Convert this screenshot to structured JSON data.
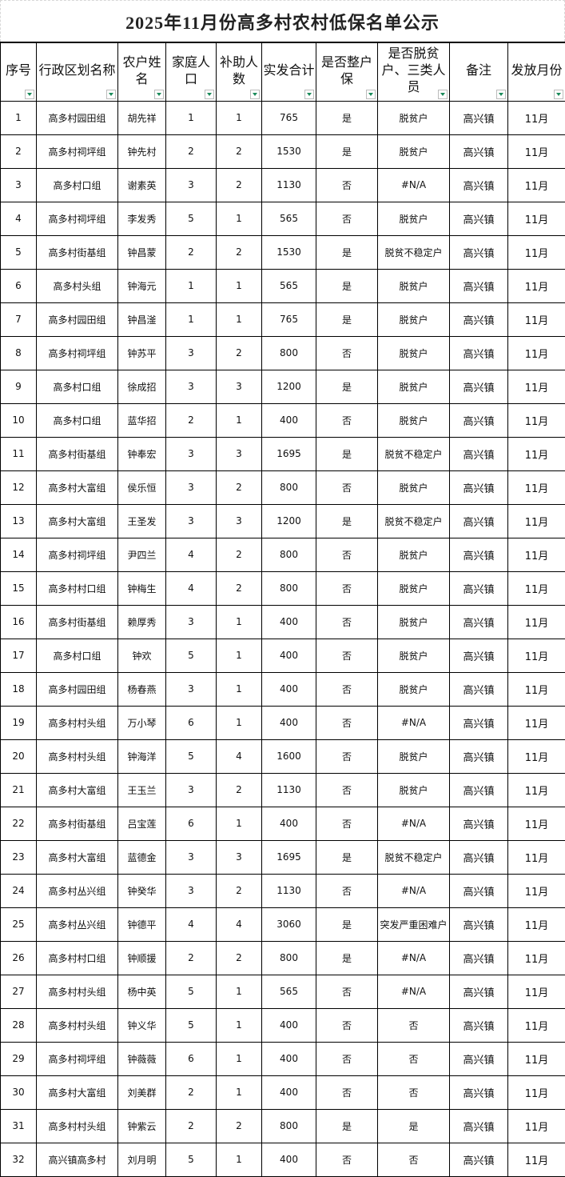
{
  "title": "2025年11月份高多村农村低保名单公示",
  "headers": [
    "序号",
    "行政区划名称",
    "农户姓名",
    "家庭人口",
    "补助人数",
    "实发合计",
    "是否整户保",
    "是否脱贫户、三类人员",
    "备注",
    "发放月份"
  ],
  "rows": [
    [
      "1",
      "高多村园田组",
      "胡先祥",
      "1",
      "1",
      "765",
      "是",
      "脱贫户",
      "高兴镇",
      "11月"
    ],
    [
      "2",
      "高多村祠坪组",
      "钟先村",
      "2",
      "2",
      "1530",
      "是",
      "脱贫户",
      "高兴镇",
      "11月"
    ],
    [
      "3",
      "高多村口组",
      "谢素英",
      "3",
      "2",
      "1130",
      "否",
      "#N/A",
      "高兴镇",
      "11月"
    ],
    [
      "4",
      "高多村祠坪组",
      "李发秀",
      "5",
      "1",
      "565",
      "否",
      "脱贫户",
      "高兴镇",
      "11月"
    ],
    [
      "5",
      "高多村街基组",
      "钟昌蒙",
      "2",
      "2",
      "1530",
      "是",
      "脱贫不稳定户",
      "高兴镇",
      "11月"
    ],
    [
      "6",
      "高多村头组",
      "钟海元",
      "1",
      "1",
      "565",
      "是",
      "脱贫户",
      "高兴镇",
      "11月"
    ],
    [
      "7",
      "高多村园田组",
      "钟昌滏",
      "1",
      "1",
      "765",
      "是",
      "脱贫户",
      "高兴镇",
      "11月"
    ],
    [
      "8",
      "高多村祠坪组",
      "钟苏平",
      "3",
      "2",
      "800",
      "否",
      "脱贫户",
      "高兴镇",
      "11月"
    ],
    [
      "9",
      "高多村口组",
      "徐成招",
      "3",
      "3",
      "1200",
      "是",
      "脱贫户",
      "高兴镇",
      "11月"
    ],
    [
      "10",
      "高多村口组",
      "蓝华招",
      "2",
      "1",
      "400",
      "否",
      "脱贫户",
      "高兴镇",
      "11月"
    ],
    [
      "11",
      "高多村街基组",
      "钟奉宏",
      "3",
      "3",
      "1695",
      "是",
      "脱贫不稳定户",
      "高兴镇",
      "11月"
    ],
    [
      "12",
      "高多村大富组",
      "侯乐恒",
      "3",
      "2",
      "800",
      "否",
      "脱贫户",
      "高兴镇",
      "11月"
    ],
    [
      "13",
      "高多村大富组",
      "王圣发",
      "3",
      "3",
      "1200",
      "是",
      "脱贫不稳定户",
      "高兴镇",
      "11月"
    ],
    [
      "14",
      "高多村祠坪组",
      "尹四兰",
      "4",
      "2",
      "800",
      "否",
      "脱贫户",
      "高兴镇",
      "11月"
    ],
    [
      "15",
      "高多村村口组",
      "钟梅生",
      "4",
      "2",
      "800",
      "否",
      "脱贫户",
      "高兴镇",
      "11月"
    ],
    [
      "16",
      "高多村街基组",
      "赖厚秀",
      "3",
      "1",
      "400",
      "否",
      "脱贫户",
      "高兴镇",
      "11月"
    ],
    [
      "17",
      "高多村口组",
      "钟欢",
      "5",
      "1",
      "400",
      "否",
      "脱贫户",
      "高兴镇",
      "11月"
    ],
    [
      "18",
      "高多村园田组",
      "杨春燕",
      "3",
      "1",
      "400",
      "否",
      "脱贫户",
      "高兴镇",
      "11月"
    ],
    [
      "19",
      "高多村村头组",
      "万小琴",
      "6",
      "1",
      "400",
      "否",
      "#N/A",
      "高兴镇",
      "11月"
    ],
    [
      "20",
      "高多村村头组",
      "钟海洋",
      "5",
      "4",
      "1600",
      "否",
      "脱贫户",
      "高兴镇",
      "11月"
    ],
    [
      "21",
      "高多村大富组",
      "王玉兰",
      "3",
      "2",
      "1130",
      "否",
      "脱贫户",
      "高兴镇",
      "11月"
    ],
    [
      "22",
      "高多村街基组",
      "吕宝莲",
      "6",
      "1",
      "400",
      "否",
      "#N/A",
      "高兴镇",
      "11月"
    ],
    [
      "23",
      "高多村大富组",
      "蓝德金",
      "3",
      "3",
      "1695",
      "是",
      "脱贫不稳定户",
      "高兴镇",
      "11月"
    ],
    [
      "24",
      "高多村丛兴组",
      "钟癸华",
      "3",
      "2",
      "1130",
      "否",
      "#N/A",
      "高兴镇",
      "11月"
    ],
    [
      "25",
      "高多村丛兴组",
      "钟德平",
      "4",
      "4",
      "3060",
      "是",
      "突发严重困难户",
      "高兴镇",
      "11月"
    ],
    [
      "26",
      "高多村村口组",
      "钟顺援",
      "2",
      "2",
      "800",
      "是",
      "#N/A",
      "高兴镇",
      "11月"
    ],
    [
      "27",
      "高多村村头组",
      "杨中英",
      "5",
      "1",
      "565",
      "否",
      "#N/A",
      "高兴镇",
      "11月"
    ],
    [
      "28",
      "高多村村头组",
      "钟义华",
      "5",
      "1",
      "400",
      "否",
      "否",
      "高兴镇",
      "11月"
    ],
    [
      "29",
      "高多村祠坪组",
      "钟薇薇",
      "6",
      "1",
      "400",
      "否",
      "否",
      "高兴镇",
      "11月"
    ],
    [
      "30",
      "高多村大富组",
      "刘美群",
      "2",
      "1",
      "400",
      "否",
      "否",
      "高兴镇",
      "11月"
    ],
    [
      "31",
      "高多村村头组",
      "钟紫云",
      "2",
      "2",
      "800",
      "是",
      "是",
      "高兴镇",
      "11月"
    ],
    [
      "32",
      "高兴镇高多村",
      "刘月明",
      "5",
      "1",
      "400",
      "否",
      "否",
      "高兴镇",
      "11月"
    ]
  ],
  "filter_color": "#1a8a5a"
}
